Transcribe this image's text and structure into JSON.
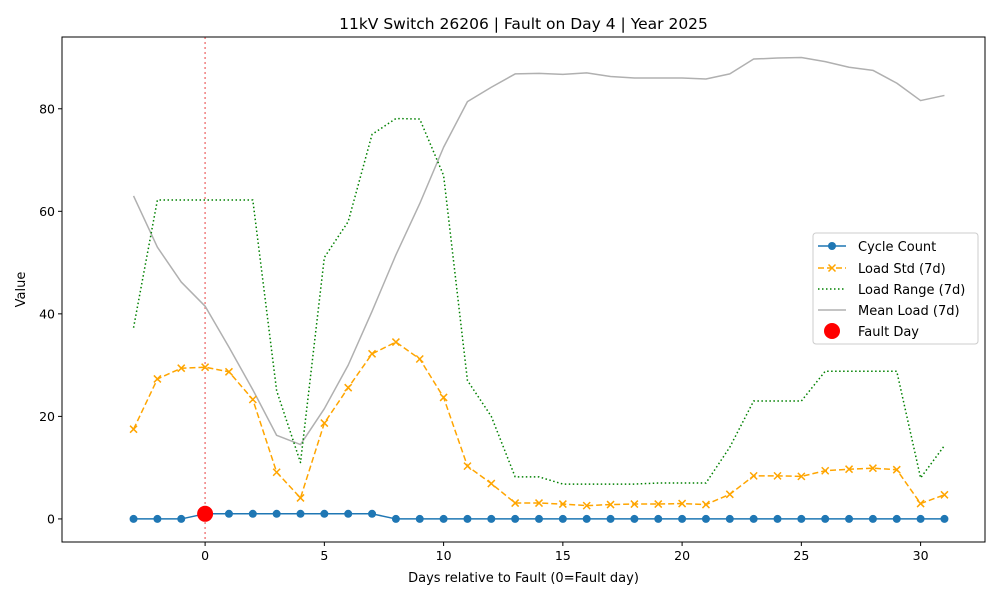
{
  "chart_data": {
    "type": "line",
    "title": "11kV Switch 26206 | Fault on Day 4 | Year 2025",
    "xlabel": "Days relative to Fault (0=Fault day)",
    "ylabel": "Value",
    "xlim": [
      -6,
      32.7
    ],
    "ylim": [
      -4.5,
      94
    ],
    "xticks": [
      0,
      5,
      10,
      15,
      20,
      25,
      30
    ],
    "yticks": [
      0,
      20,
      40,
      60,
      80
    ],
    "grid": false,
    "legend_position": "center-right",
    "fault_line_x": 0,
    "x": [
      -3,
      -2,
      -1,
      0,
      1,
      2,
      3,
      4,
      5,
      6,
      7,
      8,
      9,
      10,
      11,
      12,
      13,
      14,
      15,
      16,
      17,
      18,
      19,
      20,
      21,
      22,
      23,
      24,
      25,
      26,
      27,
      28,
      29,
      30,
      31
    ],
    "series": [
      {
        "name": "Cycle Count",
        "color": "#1f77b4",
        "style": "solid-circle",
        "values": [
          0,
          0,
          0,
          1,
          1,
          1,
          1,
          1,
          1,
          1,
          1,
          0,
          0,
          0,
          0,
          0,
          0,
          0,
          0,
          0,
          0,
          0,
          0,
          0,
          0,
          0,
          0,
          0,
          0,
          0,
          0,
          0,
          0,
          0,
          0
        ]
      },
      {
        "name": "Load Std (7d)",
        "color": "#ffa500",
        "style": "dashed-x",
        "values": [
          17.5,
          27.3,
          29.4,
          29.6,
          28.7,
          23.3,
          9.1,
          4.1,
          18.7,
          25.6,
          32.2,
          34.5,
          31.2,
          23.7,
          10.3,
          6.9,
          3.1,
          3.1,
          2.9,
          2.6,
          2.8,
          2.9,
          2.9,
          3.0,
          2.8,
          4.8,
          8.4,
          8.4,
          8.3,
          9.4,
          9.7,
          9.9,
          9.6,
          3.0,
          4.7
        ]
      },
      {
        "name": "Load Range (7d)",
        "color": "#008000",
        "style": "dotted",
        "values": [
          37.3,
          62.2,
          62.2,
          62.2,
          62.2,
          62.2,
          25.0,
          11.0,
          51.0,
          58.0,
          75.0,
          78.1,
          78.0,
          67.0,
          27.0,
          20.0,
          8.2,
          8.2,
          6.8,
          6.8,
          6.8,
          6.8,
          7.0,
          7.0,
          7.0,
          14.0,
          23.0,
          23.0,
          23.0,
          28.8,
          28.8,
          28.8,
          28.8,
          8.0,
          14.3
        ]
      },
      {
        "name": "Mean Load (7d)",
        "color": "#b0b0b0",
        "style": "solid",
        "values": [
          63.0,
          53.0,
          46.2,
          41.5,
          33.5,
          25.2,
          16.3,
          14.5,
          21.5,
          30.0,
          40.5,
          51.5,
          61.5,
          72.5,
          81.4,
          84.2,
          86.8,
          86.9,
          86.7,
          87.0,
          86.3,
          86.0,
          86.0,
          86.0,
          85.8,
          86.8,
          89.7,
          89.9,
          90.0,
          89.2,
          88.1,
          87.5,
          85.0,
          81.6,
          82.6
        ]
      }
    ],
    "fault_marker": {
      "name": "Fault Day",
      "x": 0,
      "y": 1,
      "color": "#ff0000"
    }
  }
}
